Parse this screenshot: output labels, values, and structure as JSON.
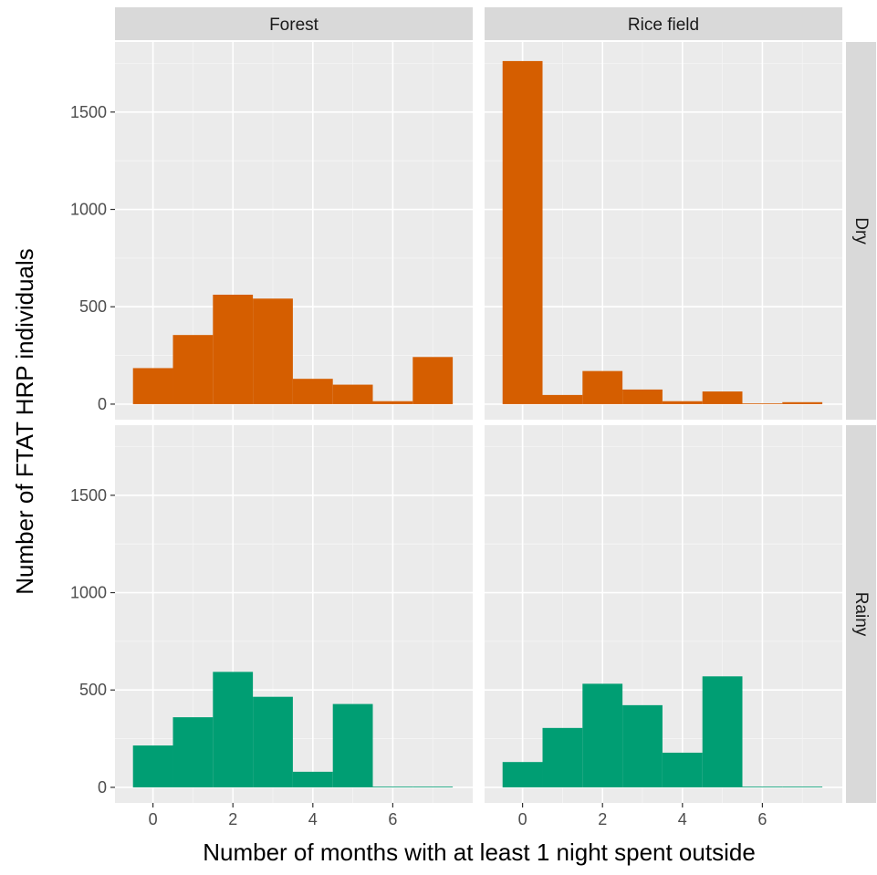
{
  "chart_data": {
    "type": "bar",
    "subtype": "faceted histogram",
    "xlabel": "Number of months with at least 1 night spent outside",
    "ylabel": "Number of FTAT HRP individuals",
    "x_bins": [
      0,
      1,
      2,
      3,
      4,
      5,
      6,
      7
    ],
    "bin_width": 1,
    "xlim": [
      -0.95,
      8.0
    ],
    "ylim": [
      -80,
      1860
    ],
    "x_ticks": [
      0,
      2,
      4,
      6
    ],
    "y_ticks": [
      0,
      500,
      1000,
      1500
    ],
    "x_tick_labels": [
      "0",
      "2",
      "4",
      "6"
    ],
    "y_tick_labels": [
      "0",
      "500",
      "1000",
      "1500"
    ],
    "grid": true,
    "legend": "none",
    "columns": [
      "Forest",
      "Rice field"
    ],
    "rows": [
      "Dry",
      "Rainy"
    ],
    "row_colors": {
      "Dry": "#d55e00",
      "Rainy": "#009e73"
    },
    "panels": [
      {
        "column": "Forest",
        "row": "Dry",
        "values": [
          185,
          355,
          562,
          542,
          130,
          100,
          15,
          242
        ]
      },
      {
        "column": "Rice field",
        "row": "Dry",
        "values": [
          1762,
          47,
          170,
          75,
          15,
          65,
          2,
          10
        ]
      },
      {
        "column": "Forest",
        "row": "Rainy",
        "values": [
          215,
          360,
          593,
          465,
          80,
          428,
          2,
          2
        ]
      },
      {
        "column": "Rice field",
        "row": "Rainy",
        "values": [
          130,
          305,
          532,
          422,
          178,
          570,
          2,
          2
        ]
      }
    ]
  },
  "colors": {
    "panel_background": "#ebebeb",
    "grid": "#ffffff",
    "strip_background": "#d9d9d9"
  }
}
